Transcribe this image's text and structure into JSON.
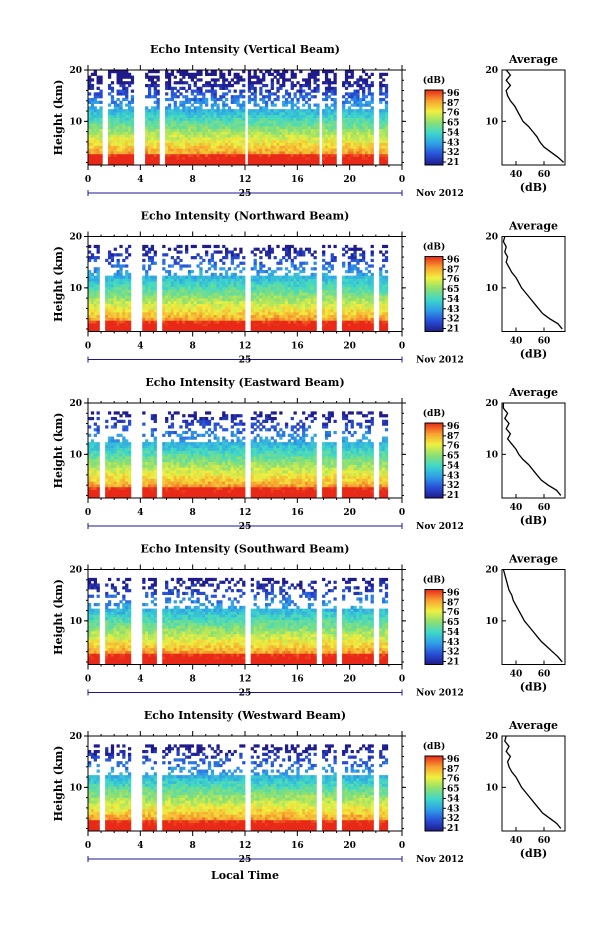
{
  "figure": {
    "xlabel": "Local Time",
    "date_text": "Nov 2012",
    "day_label": "25",
    "colorbar_unit": "(dB)",
    "colorbar_ticks": [
      "96",
      "87",
      "76",
      "65",
      "54",
      "43",
      "32",
      "21"
    ],
    "profile_title": "Average",
    "profile_xlabel": "(dB)"
  },
  "colors": {
    "scale": [
      "#1f1b8a",
      "#2850d8",
      "#2fa0e8",
      "#3fd8c8",
      "#8ee070",
      "#f0f040",
      "#f8a030",
      "#e82818"
    ]
  },
  "chart_data": [
    {
      "type": "heatmap",
      "title": "Echo Intensity (Vertical Beam)",
      "ylabel": "Height (km)",
      "x_ticks": [
        "0",
        "4",
        "8",
        "12",
        "16",
        "20",
        "0"
      ],
      "xlim": [
        0,
        24
      ],
      "y_ticks": [
        "10",
        "20"
      ],
      "ylim": [
        1.5,
        20
      ],
      "colorbar_range_db": [
        21,
        96
      ],
      "data_gaps_hours": [
        [
          1.0,
          1.6
        ],
        [
          3.4,
          4.4
        ],
        [
          5.4,
          5.8
        ],
        [
          11.9,
          12.3
        ],
        [
          17.6,
          18.0
        ],
        [
          19.0,
          19.4
        ],
        [
          21.8,
          22.2
        ],
        [
          23.0,
          24.0
        ]
      ],
      "top_of_echo_km": 20,
      "average_profile": {
        "x_ticks": [
          "40",
          "60"
        ],
        "xlim": [
          30,
          75
        ],
        "y_ticks": [
          "10",
          "20"
        ],
        "height_km": [
          2,
          3,
          4,
          5,
          6,
          7,
          8,
          9,
          10,
          11,
          12,
          13,
          14,
          15,
          16,
          17,
          18,
          19,
          20
        ],
        "db": [
          74,
          70,
          65,
          60,
          57,
          55,
          52,
          49,
          45,
          43,
          41,
          39,
          36,
          34,
          33,
          36,
          33,
          36,
          33
        ]
      }
    },
    {
      "type": "heatmap",
      "title": "Echo Intensity (Northward Beam)",
      "ylabel": "Height (km)",
      "x_ticks": [
        "0",
        "4",
        "8",
        "12",
        "16",
        "20",
        "0"
      ],
      "xlim": [
        0,
        24
      ],
      "y_ticks": [
        "10",
        "20"
      ],
      "ylim": [
        1.5,
        20
      ],
      "colorbar_range_db": [
        21,
        96
      ],
      "data_gaps_hours": [
        [
          0.9,
          1.4
        ],
        [
          3.3,
          4.2
        ],
        [
          5.3,
          5.7
        ],
        [
          12.0,
          12.4
        ],
        [
          17.5,
          17.9
        ],
        [
          19.0,
          19.4
        ],
        [
          21.8,
          22.2
        ],
        [
          23.0,
          24.0
        ]
      ],
      "top_of_echo_km": 18.5,
      "average_profile": {
        "x_ticks": [
          "40",
          "60"
        ],
        "xlim": [
          30,
          75
        ],
        "y_ticks": [
          "10",
          "20"
        ],
        "height_km": [
          2,
          3,
          4,
          5,
          6,
          7,
          8,
          9,
          10,
          11,
          12,
          13,
          14,
          15,
          16,
          17,
          18,
          19,
          20
        ],
        "db": [
          73,
          70,
          64,
          59,
          56,
          53,
          50,
          47,
          44,
          42,
          40,
          37,
          35,
          33,
          34,
          32,
          33,
          31,
          32
        ]
      }
    },
    {
      "type": "heatmap",
      "title": "Echo Intensity (Eastward Beam)",
      "ylabel": "Height (km)",
      "x_ticks": [
        "0",
        "4",
        "8",
        "12",
        "16",
        "20",
        "0"
      ],
      "xlim": [
        0,
        24
      ],
      "y_ticks": [
        "10",
        "20"
      ],
      "ylim": [
        1.5,
        20
      ],
      "colorbar_range_db": [
        21,
        96
      ],
      "data_gaps_hours": [
        [
          0.9,
          1.4
        ],
        [
          3.3,
          4.2
        ],
        [
          5.3,
          5.7
        ],
        [
          12.0,
          12.4
        ],
        [
          17.5,
          17.9
        ],
        [
          19.0,
          19.4
        ],
        [
          21.8,
          22.2
        ],
        [
          23.0,
          24.0
        ]
      ],
      "top_of_echo_km": 18.5,
      "average_profile": {
        "x_ticks": [
          "40",
          "60"
        ],
        "xlim": [
          30,
          75
        ],
        "y_ticks": [
          "10",
          "20"
        ],
        "height_km": [
          2,
          3,
          4,
          5,
          6,
          7,
          8,
          9,
          10,
          11,
          12,
          13,
          14,
          15,
          16,
          17,
          18,
          19,
          20
        ],
        "db": [
          72,
          69,
          63,
          58,
          55,
          52,
          49,
          45,
          42,
          40,
          37,
          34,
          36,
          33,
          35,
          32,
          34,
          31,
          31
        ]
      }
    },
    {
      "type": "heatmap",
      "title": "Echo Intensity (Southward Beam)",
      "ylabel": "Height (km)",
      "x_ticks": [
        "0",
        "4",
        "8",
        "12",
        "16",
        "20",
        "0"
      ],
      "xlim": [
        0,
        24
      ],
      "y_ticks": [
        "10",
        "20"
      ],
      "ylim": [
        1.5,
        20
      ],
      "colorbar_range_db": [
        21,
        96
      ],
      "data_gaps_hours": [
        [
          0.9,
          1.4
        ],
        [
          3.3,
          4.2
        ],
        [
          5.3,
          5.7
        ],
        [
          12.0,
          12.4
        ],
        [
          17.5,
          17.9
        ],
        [
          19.0,
          19.4
        ],
        [
          21.8,
          22.2
        ],
        [
          23.0,
          24.0
        ]
      ],
      "top_of_echo_km": 18.5,
      "average_profile": {
        "x_ticks": [
          "40",
          "60"
        ],
        "xlim": [
          30,
          75
        ],
        "y_ticks": [
          "10",
          "20"
        ],
        "height_km": [
          2,
          3,
          4,
          5,
          6,
          7,
          8,
          9,
          10,
          11,
          12,
          13,
          14,
          15,
          16,
          17,
          18,
          19,
          20
        ],
        "db": [
          73,
          70,
          66,
          62,
          58,
          55,
          52,
          49,
          46,
          44,
          42,
          40,
          38,
          37,
          35,
          34,
          33,
          32,
          31
        ]
      }
    },
    {
      "type": "heatmap",
      "title": "Echo Intensity (Westward Beam)",
      "ylabel": "Height (km)",
      "x_ticks": [
        "0",
        "4",
        "8",
        "12",
        "16",
        "20",
        "0"
      ],
      "xlim": [
        0,
        24
      ],
      "y_ticks": [
        "10",
        "20"
      ],
      "ylim": [
        1.5,
        20
      ],
      "colorbar_range_db": [
        21,
        96
      ],
      "data_gaps_hours": [
        [
          0.9,
          1.4
        ],
        [
          3.3,
          4.2
        ],
        [
          5.3,
          5.7
        ],
        [
          12.0,
          12.4
        ],
        [
          17.5,
          17.9
        ],
        [
          19.0,
          19.4
        ],
        [
          21.8,
          22.2
        ],
        [
          23.0,
          24.0
        ]
      ],
      "top_of_echo_km": 18.5,
      "average_profile": {
        "x_ticks": [
          "40",
          "60"
        ],
        "xlim": [
          30,
          75
        ],
        "y_ticks": [
          "10",
          "20"
        ],
        "height_km": [
          2,
          3,
          4,
          5,
          6,
          7,
          8,
          9,
          10,
          11,
          12,
          13,
          14,
          15,
          16,
          17,
          18,
          19,
          20
        ],
        "db": [
          72,
          69,
          64,
          59,
          56,
          53,
          50,
          47,
          44,
          42,
          40,
          37,
          35,
          34,
          36,
          33,
          35,
          32,
          33
        ]
      }
    }
  ]
}
